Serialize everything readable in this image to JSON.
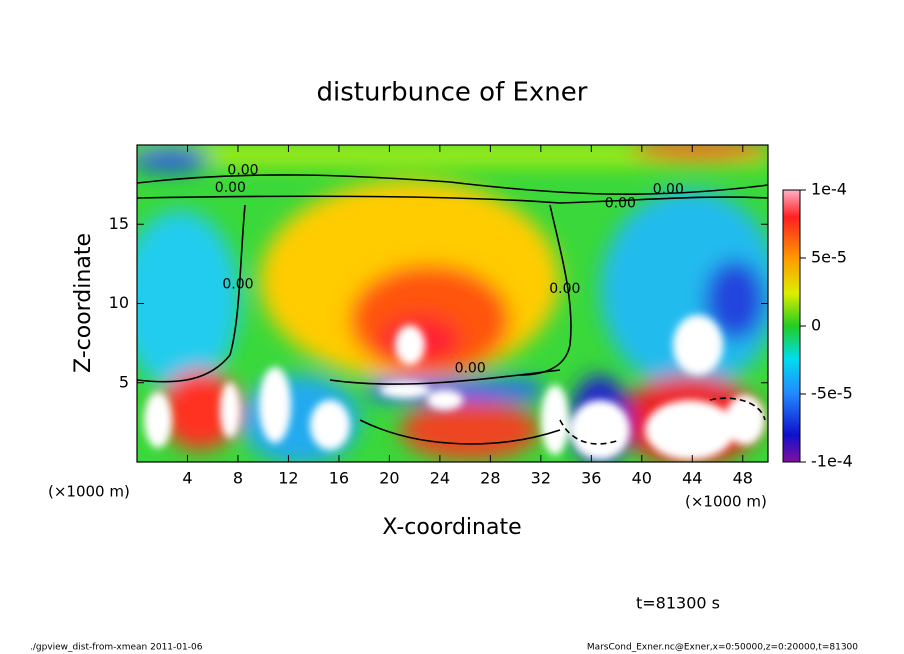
{
  "chart_data": {
    "type": "contour",
    "title": "disturbunce of Exner",
    "x_label": "X-coordinate",
    "y_label": "Z-coordinate",
    "x_unit": "(×1000 m)",
    "y_unit": "(×1000 m)",
    "xlim": [
      0,
      50
    ],
    "ylim": [
      0,
      20
    ],
    "xticks": [
      4,
      8,
      12,
      16,
      20,
      24,
      28,
      32,
      36,
      40,
      44,
      48
    ],
    "yticks": [
      5,
      10,
      15
    ],
    "colorbar": {
      "lim": [
        -0.0001,
        0.0001
      ],
      "ticks": [
        {
          "value": 0.0001,
          "label": "1e-4"
        },
        {
          "value": 5e-05,
          "label": "5e-5"
        },
        0,
        {
          "value": -5e-05,
          "label": "-5e-5"
        },
        {
          "value": -0.0001,
          "label": "-1e-4"
        }
      ]
    },
    "contour_labels": [
      {
        "text": "0.00",
        "x": 8.4,
        "z": 18.4
      },
      {
        "text": "0.00",
        "x": 7.4,
        "z": 17.3
      },
      {
        "text": "0.00",
        "x": 8.0,
        "z": 11.2
      },
      {
        "text": "0.00",
        "x": 33.9,
        "z": 10.9
      },
      {
        "text": "0.00",
        "x": 38.3,
        "z": 16.3
      },
      {
        "text": "0.00",
        "x": 42.1,
        "z": 17.2
      },
      {
        "text": "0.00",
        "x": 26.4,
        "z": 5.9
      }
    ],
    "time_label": "t=81300 s",
    "footer_left": "./gpview_dist-from-xmean  2011-01-06",
    "footer_right": "MarsCond_Exner.nc@Exner,x=0:50000,z=0:20000,t=81300"
  }
}
